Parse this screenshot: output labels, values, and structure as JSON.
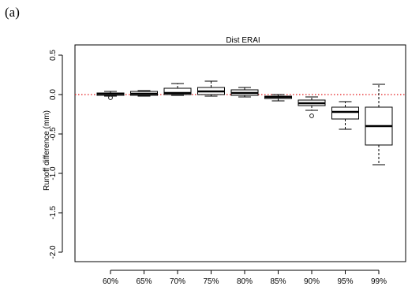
{
  "panel_label": "(a)",
  "chart_data": {
    "type": "box",
    "title": "Dist ERAI",
    "xlabel": "",
    "ylabel": "Runoff difference (mm)",
    "ylim": [
      -2.05,
      0.6
    ],
    "yticks": [
      -2.0,
      -1.5,
      -1.0,
      -0.5,
      0.0,
      0.5
    ],
    "ytick_labels": [
      "-2.0",
      "-1.5",
      "-1.0",
      "-0.5",
      "0.0",
      "0.5"
    ],
    "reference_line": {
      "y": 0,
      "color": "#e41a1c",
      "style": "dotted"
    },
    "categories": [
      "60%",
      "65%",
      "70%",
      "75%",
      "80%",
      "85%",
      "90%",
      "95%",
      "99%"
    ],
    "boxes": [
      {
        "category": "60%",
        "whisker_low": -0.02,
        "q1": -0.01,
        "median": 0.01,
        "q3": 0.02,
        "whisker_high": 0.04,
        "outliers": [
          -0.04
        ]
      },
      {
        "category": "65%",
        "whisker_low": -0.02,
        "q1": -0.01,
        "median": 0.01,
        "q3": 0.04,
        "whisker_high": 0.05,
        "outliers": []
      },
      {
        "category": "70%",
        "whisker_low": -0.01,
        "q1": 0.0,
        "median": 0.02,
        "q3": 0.08,
        "whisker_high": 0.14,
        "outliers": []
      },
      {
        "category": "75%",
        "whisker_low": -0.02,
        "q1": 0.0,
        "median": 0.04,
        "q3": 0.09,
        "whisker_high": 0.17,
        "outliers": []
      },
      {
        "category": "80%",
        "whisker_low": -0.03,
        "q1": -0.01,
        "median": 0.02,
        "q3": 0.06,
        "whisker_high": 0.09,
        "outliers": []
      },
      {
        "category": "85%",
        "whisker_low": -0.08,
        "q1": -0.05,
        "median": -0.03,
        "q3": -0.02,
        "whisker_high": 0.0,
        "outliers": []
      },
      {
        "category": "90%",
        "whisker_low": -0.2,
        "q1": -0.14,
        "median": -0.11,
        "q3": -0.07,
        "whisker_high": -0.03,
        "outliers": [
          -0.27
        ]
      },
      {
        "category": "95%",
        "whisker_low": -0.44,
        "q1": -0.31,
        "median": -0.22,
        "q3": -0.16,
        "whisker_high": -0.09,
        "outliers": []
      },
      {
        "category": "99%",
        "whisker_low": -0.89,
        "q1": -0.64,
        "median": -0.4,
        "q3": -0.16,
        "whisker_high": 0.13,
        "outliers": []
      }
    ]
  }
}
